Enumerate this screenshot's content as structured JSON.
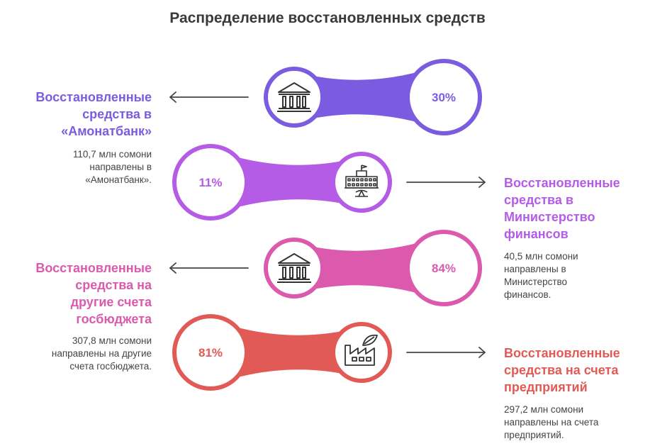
{
  "title": "Распределение восстановленных средств",
  "rows": [
    {
      "heading": "Восстановленные средства в «Амонатбанк»",
      "heading_lines": [
        "Восстановленные",
        "средства в",
        "«Амонатбанк»"
      ],
      "desc_lines": [
        "110,7 млн сомони",
        "направлены в",
        "«Амонатбанк»."
      ],
      "percent": "30%",
      "value": 30,
      "icon": "bank-icon",
      "color": "#7B5CE0"
    },
    {
      "heading": "Восстановленные средства в Министерство финансов",
      "heading_lines": [
        "Восстановленные",
        "средства в",
        "Министерство",
        "финансов"
      ],
      "desc_lines": [
        "40,5 млн сомони",
        "направлены в",
        "Министерство",
        "финансов."
      ],
      "percent": "11%",
      "value": 11,
      "icon": "government-building-icon",
      "color": "#B45CE6"
    },
    {
      "heading": "Восстановленные средства на другие счета госбюджета",
      "heading_lines": [
        "Восстановленные",
        "средства на",
        "другие счета",
        "госбюджета"
      ],
      "desc_lines": [
        "307,8 млн сомони",
        "направлены на другие",
        "счета госбюджета."
      ],
      "percent": "84%",
      "value": 84,
      "icon": "bank-icon",
      "color": "#DB5AAE"
    },
    {
      "heading": "Восстановленные средства на счета предприятий",
      "heading_lines": [
        "Восстановленные",
        "средства на счета",
        "предприятий"
      ],
      "desc_lines": [
        "297,2 млн сомони",
        "направлены на счета",
        "предприятий."
      ],
      "percent": "81%",
      "value": 81,
      "icon": "factory-icon",
      "color": "#E25A55"
    }
  ]
}
